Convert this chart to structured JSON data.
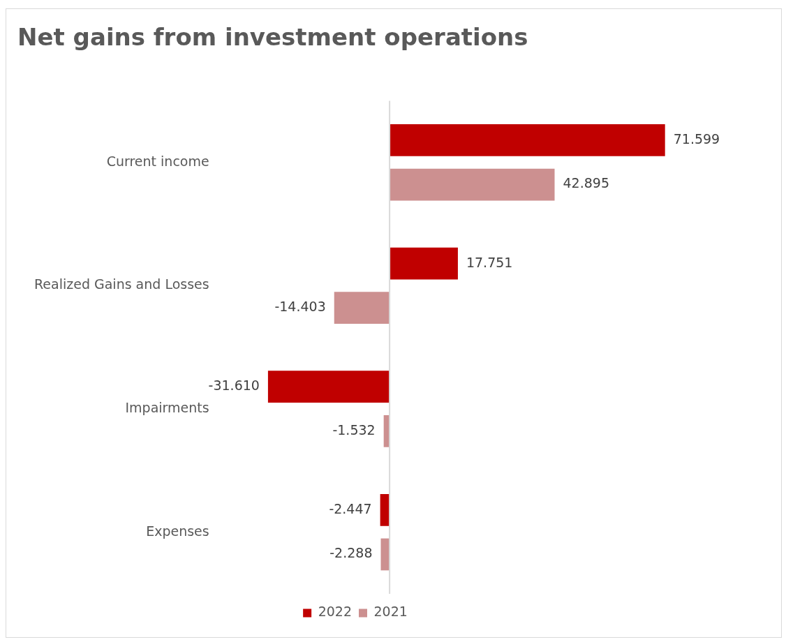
{
  "chart_data": {
    "type": "bar",
    "orientation": "horizontal",
    "title": "Net gains from investment operations",
    "categories": [
      "Current income",
      "Realized Gains and Losses",
      "Impairments",
      "Expenses"
    ],
    "series": [
      {
        "name": "2022",
        "color": "#c00000",
        "values": [
          71.599,
          17.751,
          -31.61,
          -2.447
        ],
        "value_labels": [
          "71.599",
          "17.751",
          "-31.610",
          "-2.447"
        ]
      },
      {
        "name": "2021",
        "color": "#cc9090",
        "values": [
          42.895,
          -14.403,
          -1.532,
          -2.288
        ],
        "value_labels": [
          "42.895",
          "-14.403",
          "-1.532",
          "-2.288"
        ]
      }
    ],
    "legend": "bottom",
    "grid": false,
    "tick_labels": "y"
  }
}
